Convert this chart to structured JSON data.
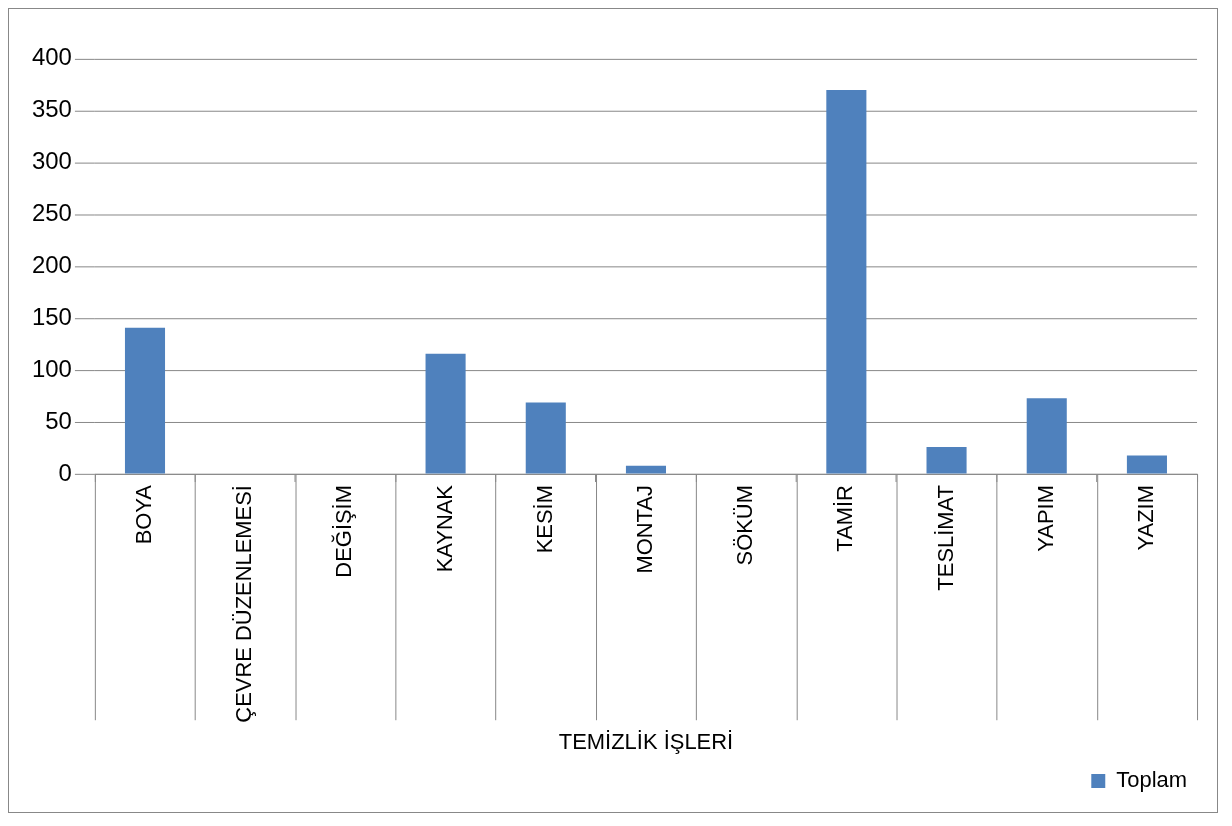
{
  "chart_data": {
    "type": "bar",
    "xlabel": "TEMİZLİK İŞLERİ",
    "categories": [
      "BOYA",
      "ÇEVRE DÜZENLEMESİ",
      "DEĞİŞİM",
      "KAYNAK",
      "KESİM",
      "MONTAJ",
      "SÖKÜM",
      "TAMİR",
      "TESLİMAT",
      "YAPIM",
      "YAZIM"
    ],
    "series": [
      {
        "name": "Toplam",
        "color": "#4f81bd",
        "values": [
          141,
          0,
          0,
          116,
          69,
          8,
          0,
          370,
          26,
          73,
          18
        ]
      }
    ],
    "ylim": [
      0,
      400
    ],
    "yticks": [
      0,
      50,
      100,
      150,
      200,
      250,
      300,
      350,
      400
    ],
    "grid": "y",
    "legend": "bottom right"
  }
}
